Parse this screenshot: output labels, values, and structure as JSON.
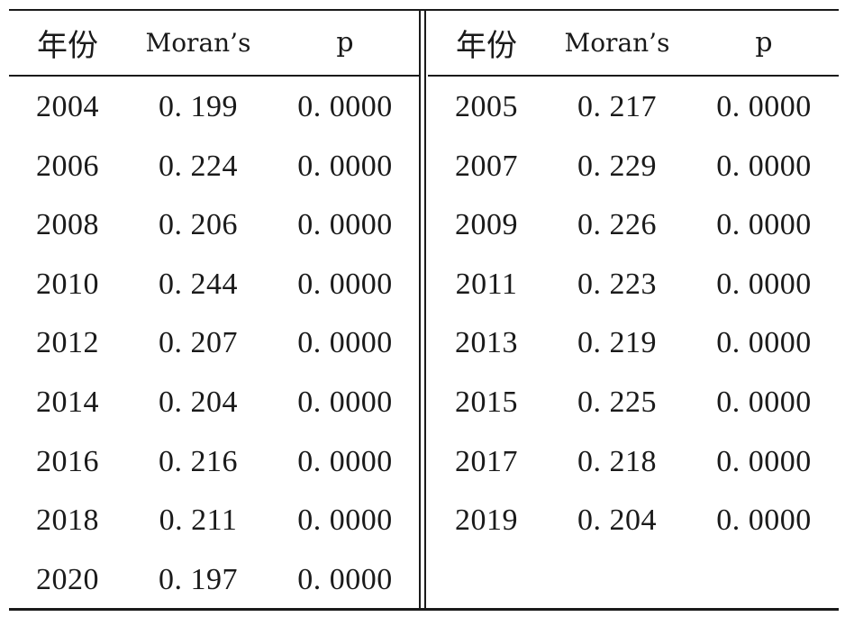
{
  "headers": {
    "year": "年份",
    "moran": "Moran’s",
    "p": "p"
  },
  "left_rows": [
    {
      "year": "2004",
      "moran": "0. 199",
      "p": "0. 0000"
    },
    {
      "year": "2006",
      "moran": "0. 224",
      "p": "0. 0000"
    },
    {
      "year": "2008",
      "moran": "0. 206",
      "p": "0. 0000"
    },
    {
      "year": "2010",
      "moran": "0. 244",
      "p": "0. 0000"
    },
    {
      "year": "2012",
      "moran": "0. 207",
      "p": "0. 0000"
    },
    {
      "year": "2014",
      "moran": "0. 204",
      "p": "0. 0000"
    },
    {
      "year": "2016",
      "moran": "0. 216",
      "p": "0. 0000"
    },
    {
      "year": "2018",
      "moran": "0. 211",
      "p": "0. 0000"
    },
    {
      "year": "2020",
      "moran": "0. 197",
      "p": "0. 0000"
    }
  ],
  "right_rows": [
    {
      "year": "2005",
      "moran": "0. 217",
      "p": "0. 0000"
    },
    {
      "year": "2007",
      "moran": "0. 229",
      "p": "0. 0000"
    },
    {
      "year": "2009",
      "moran": "0. 226",
      "p": "0. 0000"
    },
    {
      "year": "2011",
      "moran": "0. 223",
      "p": "0. 0000"
    },
    {
      "year": "2013",
      "moran": "0. 219",
      "p": "0. 0000"
    },
    {
      "year": "2015",
      "moran": "0. 225",
      "p": "0. 0000"
    },
    {
      "year": "2017",
      "moran": "0. 218",
      "p": "0. 0000"
    },
    {
      "year": "2019",
      "moran": "0. 204",
      "p": "0. 0000"
    }
  ]
}
